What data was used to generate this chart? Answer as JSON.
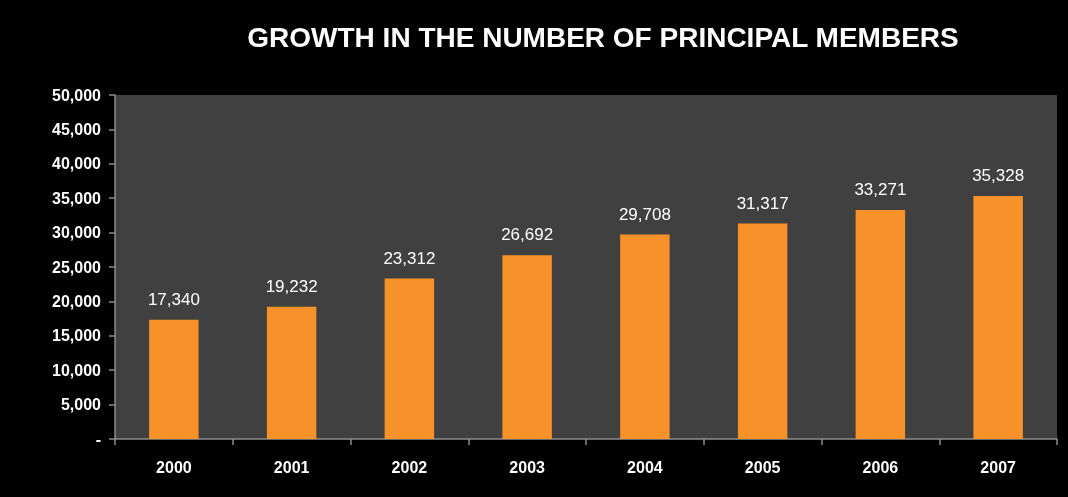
{
  "chart_data": {
    "type": "bar",
    "title": "GROWTH IN THE NUMBER OF PRINCIPAL MEMBERS",
    "categories": [
      "2000",
      "2001",
      "2002",
      "2003",
      "2004",
      "2005",
      "2006",
      "2007"
    ],
    "values": [
      17340,
      19232,
      23312,
      26692,
      29708,
      31317,
      33271,
      35328
    ],
    "value_labels": [
      "17,340",
      "19,232",
      "23,312",
      "26,692",
      "29,708",
      "31,317",
      "33,271",
      "35,328"
    ],
    "color": "#f7922a",
    "ylim": [
      0,
      50000
    ],
    "yticks": [
      {
        "value": 0,
        "label": "-"
      },
      {
        "value": 5000,
        "label": "5,000"
      },
      {
        "value": 10000,
        "label": "10,000"
      },
      {
        "value": 15000,
        "label": "15,000"
      },
      {
        "value": 20000,
        "label": "20,000"
      },
      {
        "value": 25000,
        "label": "25,000"
      },
      {
        "value": 30000,
        "label": "30,000"
      },
      {
        "value": 35000,
        "label": "35,000"
      },
      {
        "value": 40000,
        "label": "40,000"
      },
      {
        "value": 45000,
        "label": "45,000"
      },
      {
        "value": 50000,
        "label": "50,000"
      }
    ],
    "grid": false
  }
}
